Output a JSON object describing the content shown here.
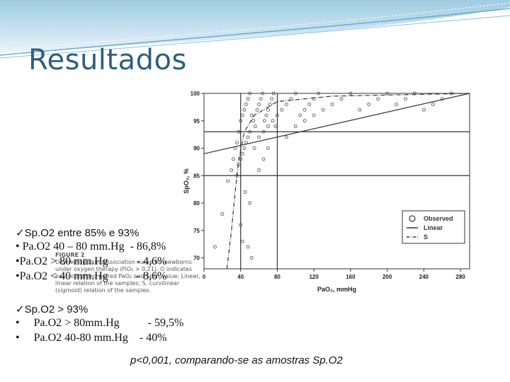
{
  "slide": {
    "title": "Resultados"
  },
  "figure": {
    "caption_title": "FIGURE 2",
    "caption_text": "Oxyhemoglobin dissociation curve for newborns under oxygen therapy (FiO₂ > 0.21). O indicates each observed paired PaO₂ and SpO₂ value; Linear, linear relation of the samples; S, curvilinear (sigmoid) relation of the samples.",
    "legend": [
      "Observed",
      "Linear",
      "S"
    ],
    "chart_data": {
      "type": "scatter",
      "xlabel": "PaO₂, mmHg",
      "ylabel": "SpO₂, %",
      "x_ticks": [
        0,
        40,
        80,
        120,
        160,
        200,
        240,
        280
      ],
      "y_ticks": [
        70,
        75,
        80,
        85,
        90,
        95,
        100
      ],
      "xlim": [
        0,
        290
      ],
      "ylim": [
        68,
        100
      ],
      "reference_lines": {
        "x": [
          40,
          80
        ],
        "y": [
          85,
          93
        ]
      },
      "series": [
        {
          "name": "Observed",
          "style": "circle",
          "points": [
            [
              12,
              72
            ],
            [
              20,
              78
            ],
            [
              26,
              84
            ],
            [
              30,
              86
            ],
            [
              32,
              88
            ],
            [
              34,
              90
            ],
            [
              36,
              91
            ],
            [
              38,
              93
            ],
            [
              40,
              95
            ],
            [
              42,
              96
            ],
            [
              44,
              97
            ],
            [
              46,
              98
            ],
            [
              48,
              99
            ],
            [
              50,
              100
            ],
            [
              52,
              96
            ],
            [
              54,
              95
            ],
            [
              56,
              94
            ],
            [
              58,
              97
            ],
            [
              60,
              98
            ],
            [
              62,
              99
            ],
            [
              64,
              100
            ],
            [
              66,
              95
            ],
            [
              68,
              96
            ],
            [
              70,
              97
            ],
            [
              72,
              98
            ],
            [
              74,
              99
            ],
            [
              76,
              100
            ],
            [
              78,
              94
            ],
            [
              36,
              85
            ],
            [
              38,
              87
            ],
            [
              40,
              88
            ],
            [
              42,
              89
            ],
            [
              44,
              90
            ],
            [
              46,
              91
            ],
            [
              48,
              92
            ],
            [
              50,
              93
            ],
            [
              55,
              90
            ],
            [
              60,
              92
            ],
            [
              65,
              93
            ],
            [
              70,
              94
            ],
            [
              75,
              95
            ],
            [
              80,
              96
            ],
            [
              85,
              97
            ],
            [
              90,
              98
            ],
            [
              95,
              99
            ],
            [
              100,
              100
            ],
            [
              105,
              96
            ],
            [
              110,
              97
            ],
            [
              115,
              98
            ],
            [
              120,
              99
            ],
            [
              125,
              100
            ],
            [
              130,
              97
            ],
            [
              140,
              98
            ],
            [
              150,
              99
            ],
            [
              160,
              100
            ],
            [
              170,
              97
            ],
            [
              180,
              98
            ],
            [
              190,
              99
            ],
            [
              200,
              100
            ],
            [
              210,
              98
            ],
            [
              220,
              99
            ],
            [
              230,
              100
            ],
            [
              240,
              97
            ],
            [
              250,
              98
            ],
            [
              260,
              99
            ],
            [
              270,
              100
            ],
            [
              45,
              82
            ],
            [
              50,
              80
            ],
            [
              40,
              76
            ],
            [
              42,
              73
            ],
            [
              48,
              72
            ],
            [
              52,
              70
            ],
            [
              60,
              86
            ],
            [
              65,
              88
            ],
            [
              70,
              90
            ],
            [
              90,
              92
            ],
            [
              100,
              94
            ],
            [
              110,
              95
            ],
            [
              120,
              96
            ]
          ]
        },
        {
          "name": "Linear",
          "style": "solid",
          "points": [
            [
              0,
              89
            ],
            [
              290,
              101
            ]
          ]
        },
        {
          "name": "S",
          "style": "dashdot",
          "points": [
            [
              25,
              67
            ],
            [
              30,
              75
            ],
            [
              34,
              82
            ],
            [
              38,
              88
            ],
            [
              44,
              93
            ],
            [
              55,
              96
            ],
            [
              80,
              98.5
            ],
            [
              140,
              99.5
            ],
            [
              290,
              100
            ]
          ]
        }
      ]
    }
  },
  "spo2_mid": {
    "heading": "Sp.O2 entre 85% e 93%",
    "items": [
      "• Pa.O2 40 – 80 mm.Hg  - 86,8%",
      "•Pa.O2 > 80 mm.Hg          - 4,6%",
      "•Pa.O2 < 40 mm.Hg          - 8,6%"
    ]
  },
  "spo2_high": {
    "heading": "Sp.O2 > 93%",
    "items": [
      "•     Pa.O2 > 80mm.Hg          - 59,5%",
      "•     Pa.O2 40-80 mm.Hg    - 40%"
    ]
  },
  "footer": {
    "pvalue": "p<0,001, comparando-se as amostras Sp.O2"
  },
  "colors": {
    "title": "#2f5f7f",
    "band": "#7fb8d6",
    "checkmark": "#111111"
  }
}
